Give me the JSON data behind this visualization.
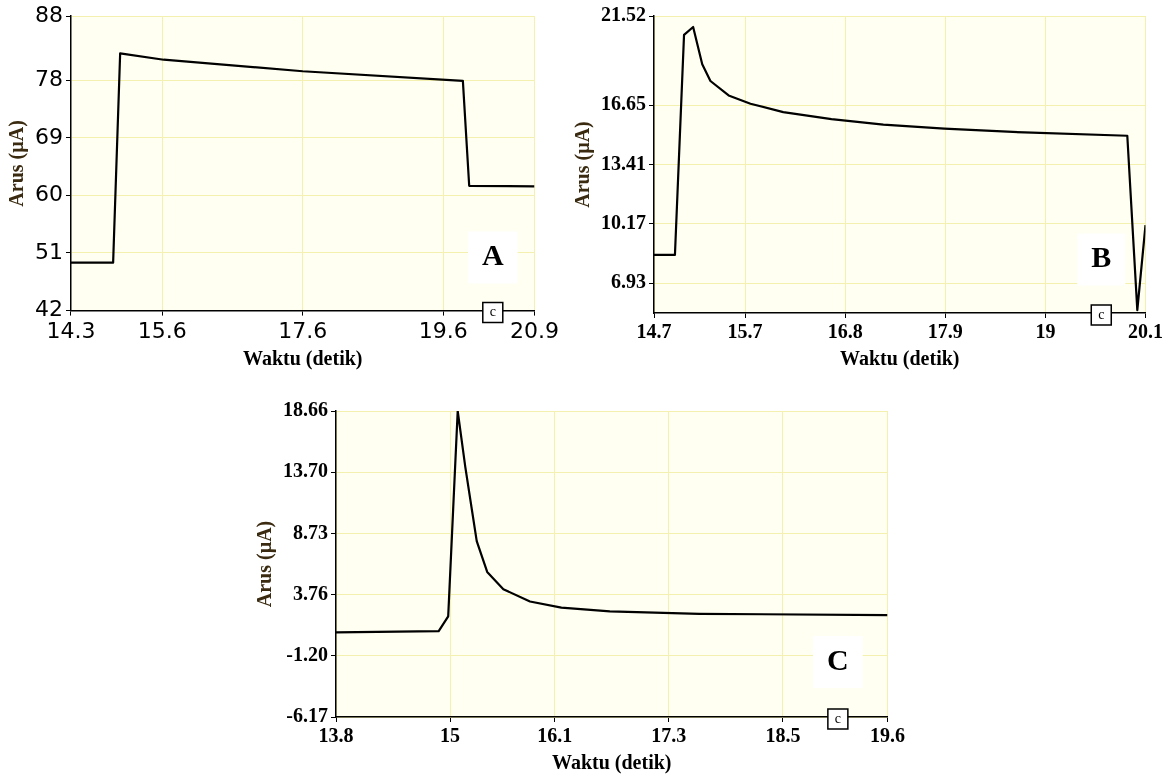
{
  "chart_data": [
    {
      "type": "line",
      "xlabel": "Waktu (detik)",
      "ylabel": "Arus (µA)",
      "x": [
        14.3,
        14.9,
        15.0,
        15.62,
        17.6,
        19.88,
        19.97,
        20.9
      ],
      "values": [
        49.5,
        49.5,
        82.2,
        81.2,
        79.4,
        77.9,
        61.5,
        61.4
      ],
      "color": "#000000",
      "xlim": [
        14.3,
        20.9
      ],
      "xticks": [
        14.3,
        15.6,
        17.6,
        19.6,
        20.9
      ],
      "ylim": [
        42,
        88
      ],
      "yticks": [
        42,
        51,
        60,
        69,
        78,
        88
      ],
      "grid": true,
      "marker": "none",
      "annotations": [
        "A",
        "c"
      ]
    },
    {
      "type": "line",
      "xlabel": "Waktu (detik)",
      "ylabel": "Arus (µA)",
      "x": [
        14.7,
        14.93,
        15.03,
        15.13,
        15.23,
        15.32,
        15.52,
        15.76,
        16.12,
        16.65,
        17.22,
        17.89,
        18.77,
        19.9,
        20.01,
        20.1
      ],
      "values": [
        8.47,
        8.47,
        20.49,
        20.92,
        18.88,
        17.97,
        17.18,
        16.73,
        16.27,
        15.89,
        15.59,
        15.37,
        15.16,
        14.98,
        5.46,
        10.1
      ],
      "color": "#000000",
      "xlim": [
        14.7,
        20.1
      ],
      "xticks": [
        14.7,
        15.7,
        16.8,
        17.9,
        19,
        20.1
      ],
      "ylim": [
        5.3,
        21.52
      ],
      "yticks": [
        6.93,
        10.17,
        13.41,
        16.65,
        21.52
      ],
      "grid": true,
      "marker": "none",
      "annotations": [
        "B",
        "c"
      ]
    },
    {
      "type": "line",
      "xlabel": "Waktu (detik)",
      "ylabel": "Arus (µA)",
      "x": [
        13.8,
        14.88,
        14.98,
        15.08,
        15.16,
        15.28,
        15.39,
        15.56,
        15.84,
        16.17,
        16.68,
        17.62,
        19.6
      ],
      "values": [
        0.7,
        0.8,
        2.0,
        18.66,
        14.1,
        8.1,
        5.6,
        4.2,
        3.2,
        2.7,
        2.4,
        2.2,
        2.1
      ],
      "color": "#000000",
      "xlim": [
        13.8,
        19.6
      ],
      "xticks": [
        13.8,
        15,
        16.1,
        17.3,
        18.5,
        19.6
      ],
      "ylim": [
        -6.17,
        18.66
      ],
      "yticks": [
        -6.17,
        {
          "value": -1.2,
          "label": "-1.20"
        },
        3.76,
        8.73,
        {
          "value": 13.7,
          "label": "13.70"
        },
        18.66
      ],
      "grid": true,
      "marker": "none",
      "annotations": [
        "C",
        "c"
      ]
    }
  ]
}
